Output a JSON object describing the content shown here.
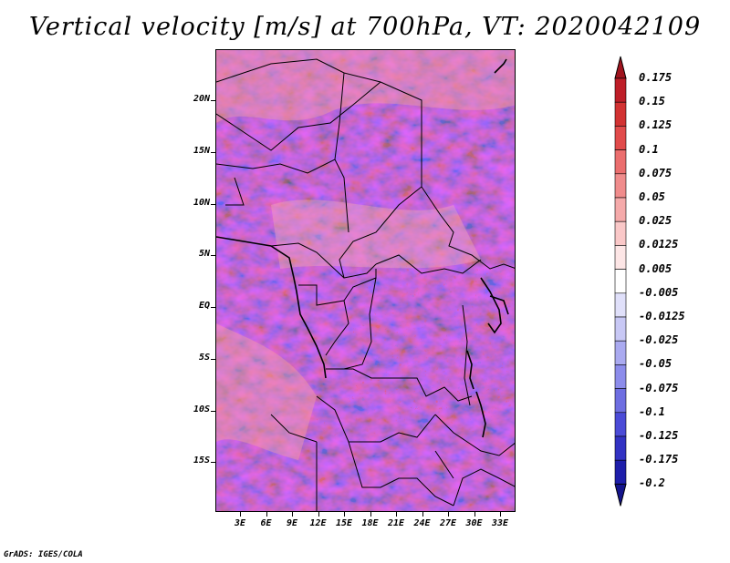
{
  "title": "Vertical velocity [m/s] at 700hPa, VT: 2020042109",
  "credit": "GrADS: IGES/COLA",
  "map": {
    "lat_range": [
      -20,
      25
    ],
    "lon_range": [
      0,
      36
    ],
    "lat_ticks": [
      {
        "value": 20,
        "label": "20N"
      },
      {
        "value": 15,
        "label": "15N"
      },
      {
        "value": 10,
        "label": "10N"
      },
      {
        "value": 5,
        "label": "5N"
      },
      {
        "value": 0,
        "label": "EQ"
      },
      {
        "value": -5,
        "label": "5S"
      },
      {
        "value": -10,
        "label": "10S"
      },
      {
        "value": -15,
        "label": "15S"
      }
    ],
    "lon_ticks": [
      {
        "value": 3,
        "label": "3E"
      },
      {
        "value": 6,
        "label": "6E"
      },
      {
        "value": 9,
        "label": "9E"
      },
      {
        "value": 12,
        "label": "12E"
      },
      {
        "value": 15,
        "label": "15E"
      },
      {
        "value": 18,
        "label": "18E"
      },
      {
        "value": 21,
        "label": "21E"
      },
      {
        "value": 24,
        "label": "24E"
      },
      {
        "value": 27,
        "label": "27E"
      },
      {
        "value": 30,
        "label": "30E"
      },
      {
        "value": 33,
        "label": "33E"
      }
    ]
  },
  "colorbar": {
    "labels": [
      "0.175",
      "0.15",
      "0.125",
      "0.1",
      "0.075",
      "0.05",
      "0.025",
      "0.0125",
      "0.005",
      "-0.005",
      "-0.0125",
      "-0.025",
      "-0.05",
      "-0.075",
      "-0.1",
      "-0.125",
      "-0.175",
      "-0.2"
    ],
    "colors": [
      "#a0141e",
      "#be1e28",
      "#d23232",
      "#e14b4b",
      "#eb6e6e",
      "#f08c8c",
      "#f5aaaa",
      "#fac8c8",
      "#fde6e6",
      "#ffffff",
      "#e0e0fa",
      "#c8c8f5",
      "#aaaaf0",
      "#8c8ceb",
      "#6e6ee1",
      "#4b4bd7",
      "#3232c3",
      "#1e1eaa",
      "#14148c"
    ]
  }
}
